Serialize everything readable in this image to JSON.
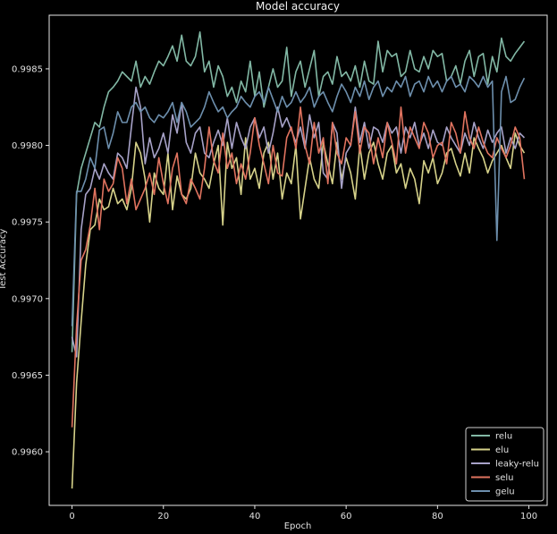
{
  "chart_data": {
    "type": "line",
    "title": "Model accuracy",
    "xlabel": "Epoch",
    "ylabel": "Test Accuracy",
    "xlim": [
      -5,
      104
    ],
    "ylim": [
      0.99565,
      0.99885
    ],
    "xticks": [
      0,
      20,
      40,
      60,
      80,
      100
    ],
    "yticks": [
      0.996,
      0.9965,
      0.997,
      0.9975,
      0.998,
      0.9985
    ],
    "ytick_labels": [
      "0.9960",
      "0.9965",
      "0.9970",
      "0.9975",
      "0.9980",
      "0.9985"
    ],
    "grid": false,
    "legend_position": "bottom-right",
    "series": [
      {
        "name": "relu",
        "color": "#82b8a5",
        "values": [
          0.99665,
          0.99768,
          0.99785,
          0.99795,
          0.99805,
          0.99815,
          0.99812,
          0.99825,
          0.99835,
          0.99838,
          0.99842,
          0.99848,
          0.99845,
          0.99842,
          0.99855,
          0.99838,
          0.99845,
          0.9984,
          0.99848,
          0.99855,
          0.99852,
          0.99858,
          0.99865,
          0.99855,
          0.99872,
          0.99855,
          0.99852,
          0.99858,
          0.99874,
          0.99848,
          0.99855,
          0.99838,
          0.99852,
          0.99845,
          0.99832,
          0.99838,
          0.99828,
          0.99842,
          0.99835,
          0.99855,
          0.99832,
          0.99848,
          0.99825,
          0.99838,
          0.9985,
          0.99838,
          0.99842,
          0.99864,
          0.99832,
          0.99848,
          0.99855,
          0.99838,
          0.9985,
          0.99862,
          0.99832,
          0.99845,
          0.99848,
          0.9984,
          0.99858,
          0.99845,
          0.99848,
          0.99842,
          0.99852,
          0.99838,
          0.99855,
          0.99842,
          0.9984,
          0.99868,
          0.99848,
          0.99862,
          0.99858,
          0.9986,
          0.99845,
          0.99848,
          0.99862,
          0.9985,
          0.99848,
          0.99858,
          0.9985,
          0.99862,
          0.99858,
          0.9986,
          0.99842,
          0.99845,
          0.99852,
          0.9984,
          0.99855,
          0.99862,
          0.99845,
          0.99858,
          0.9986,
          0.9984,
          0.99858,
          0.99848,
          0.9987,
          0.99858,
          0.99855,
          0.9986,
          0.99864,
          0.99868
        ]
      },
      {
        "name": "elu",
        "color": "#d6d28a",
        "values": [
          0.99576,
          0.99645,
          0.99685,
          0.99722,
          0.99745,
          0.99748,
          0.99765,
          0.99758,
          0.9976,
          0.99772,
          0.99762,
          0.99765,
          0.99758,
          0.99772,
          0.99802,
          0.99795,
          0.99778,
          0.9975,
          0.99782,
          0.99772,
          0.99768,
          0.99795,
          0.99758,
          0.9978,
          0.99768,
          0.99765,
          0.99772,
          0.99795,
          0.99782,
          0.99778,
          0.99772,
          0.99788,
          0.998,
          0.99748,
          0.99802,
          0.99785,
          0.99792,
          0.99768,
          0.99805,
          0.99778,
          0.99785,
          0.99772,
          0.99795,
          0.99802,
          0.99778,
          0.99795,
          0.99765,
          0.99782,
          0.99775,
          0.998,
          0.99752,
          0.99772,
          0.99792,
          0.99778,
          0.99772,
          0.99802,
          0.99788,
          0.99775,
          0.99802,
          0.99778,
          0.99792,
          0.99782,
          0.99765,
          0.998,
          0.99778,
          0.99795,
          0.99802,
          0.99788,
          0.99778,
          0.99795,
          0.998,
          0.99782,
          0.99788,
          0.99772,
          0.99785,
          0.99778,
          0.99762,
          0.9979,
          0.99782,
          0.99792,
          0.99775,
          0.99782,
          0.99795,
          0.99798,
          0.99788,
          0.9978,
          0.99795,
          0.99782,
          0.99805,
          0.99798,
          0.99792,
          0.99782,
          0.9979,
          0.99795,
          0.998,
          0.99792,
          0.99785,
          0.99808,
          0.998,
          0.99795
        ]
      },
      {
        "name": "leaky-relu",
        "color": "#a7a2c8",
        "values": [
          0.99675,
          0.99662,
          0.99745,
          0.99768,
          0.99772,
          0.99785,
          0.99778,
          0.99788,
          0.99782,
          0.99778,
          0.99795,
          0.99792,
          0.99785,
          0.99812,
          0.99838,
          0.99825,
          0.99788,
          0.99805,
          0.99792,
          0.99798,
          0.99808,
          0.99795,
          0.9982,
          0.99808,
          0.99828,
          0.99802,
          0.99795,
          0.99808,
          0.99812,
          0.99795,
          0.99792,
          0.99802,
          0.9981,
          0.998,
          0.99818,
          0.99798,
          0.99815,
          0.99805,
          0.99798,
          0.99812,
          0.99818,
          0.99805,
          0.99812,
          0.99795,
          0.99808,
          0.99825,
          0.99812,
          0.99818,
          0.9981,
          0.99802,
          0.99812,
          0.99798,
          0.9982,
          0.99805,
          0.99815,
          0.99782,
          0.99778,
          0.99815,
          0.99808,
          0.99772,
          0.99795,
          0.998,
          0.99825,
          0.99802,
          0.99815,
          0.99798,
          0.99812,
          0.9981,
          0.99802,
          0.99815,
          0.99808,
          0.99812,
          0.99795,
          0.99812,
          0.99805,
          0.99815,
          0.998,
          0.99808,
          0.99798,
          0.9981,
          0.99802,
          0.998,
          0.99812,
          0.99805,
          0.998,
          0.99795,
          0.99808,
          0.998,
          0.99815,
          0.99805,
          0.99798,
          0.9981,
          0.99802,
          0.99808,
          0.99812,
          0.99795,
          0.99805,
          0.99798,
          0.99808,
          0.99805
        ]
      },
      {
        "name": "selu",
        "color": "#e0735f",
        "values": [
          0.99616,
          0.99682,
          0.99725,
          0.99732,
          0.99748,
          0.99772,
          0.99745,
          0.99778,
          0.9977,
          0.99775,
          0.99792,
          0.99785,
          0.99762,
          0.99778,
          0.99758,
          0.99765,
          0.99772,
          0.99782,
          0.99768,
          0.99792,
          0.99775,
          0.99762,
          0.99785,
          0.99795,
          0.99768,
          0.99762,
          0.99778,
          0.99772,
          0.99765,
          0.99785,
          0.99812,
          0.9979,
          0.99782,
          0.99808,
          0.99785,
          0.99795,
          0.99775,
          0.99788,
          0.99778,
          0.99795,
          0.99818,
          0.998,
          0.99788,
          0.99775,
          0.998,
          0.99782,
          0.9978,
          0.99805,
          0.99812,
          0.99798,
          0.99825,
          0.998,
          0.99788,
          0.99815,
          0.99795,
          0.99805,
          0.99775,
          0.99815,
          0.99795,
          0.99788,
          0.99805,
          0.998,
          0.99822,
          0.99795,
          0.99812,
          0.99808,
          0.99788,
          0.99805,
          0.99792,
          0.99815,
          0.99802,
          0.99788,
          0.99825,
          0.99795,
          0.99812,
          0.99805,
          0.99798,
          0.99815,
          0.99808,
          0.99792,
          0.998,
          0.99802,
          0.99788,
          0.99815,
          0.99808,
          0.99795,
          0.99822,
          0.99805,
          0.99798,
          0.99812,
          0.99802,
          0.99795,
          0.99792,
          0.99805,
          0.99798,
          0.99792,
          0.998,
          0.99812,
          0.99805,
          0.99778
        ]
      },
      {
        "name": "gelu",
        "color": "#6d8fad",
        "values": [
          0.99682,
          0.9977,
          0.9977,
          0.99778,
          0.99792,
          0.99785,
          0.9981,
          0.99812,
          0.99798,
          0.99808,
          0.99822,
          0.99815,
          0.99815,
          0.99825,
          0.99828,
          0.99822,
          0.99825,
          0.99818,
          0.99815,
          0.9982,
          0.99818,
          0.99822,
          0.99828,
          0.99815,
          0.99828,
          0.99822,
          0.99812,
          0.99815,
          0.99818,
          0.99825,
          0.99835,
          0.99828,
          0.99822,
          0.99825,
          0.99818,
          0.99822,
          0.99825,
          0.99832,
          0.99828,
          0.99825,
          0.99832,
          0.99835,
          0.99828,
          0.99838,
          0.9983,
          0.99822,
          0.99832,
          0.99825,
          0.99828,
          0.99835,
          0.99828,
          0.99832,
          0.99838,
          0.99825,
          0.99832,
          0.99835,
          0.99828,
          0.99822,
          0.99832,
          0.9984,
          0.99835,
          0.99828,
          0.99838,
          0.99832,
          0.99842,
          0.9983,
          0.99838,
          0.99842,
          0.99832,
          0.99838,
          0.99835,
          0.99842,
          0.99838,
          0.99845,
          0.99832,
          0.9984,
          0.99842,
          0.99835,
          0.99845,
          0.99838,
          0.99842,
          0.99835,
          0.99842,
          0.99845,
          0.99838,
          0.9984,
          0.99835,
          0.99845,
          0.99842,
          0.99838,
          0.99845,
          0.99838,
          0.99842,
          0.99738,
          0.99835,
          0.99845,
          0.99828,
          0.9983,
          0.99838,
          0.99844
        ]
      }
    ]
  }
}
